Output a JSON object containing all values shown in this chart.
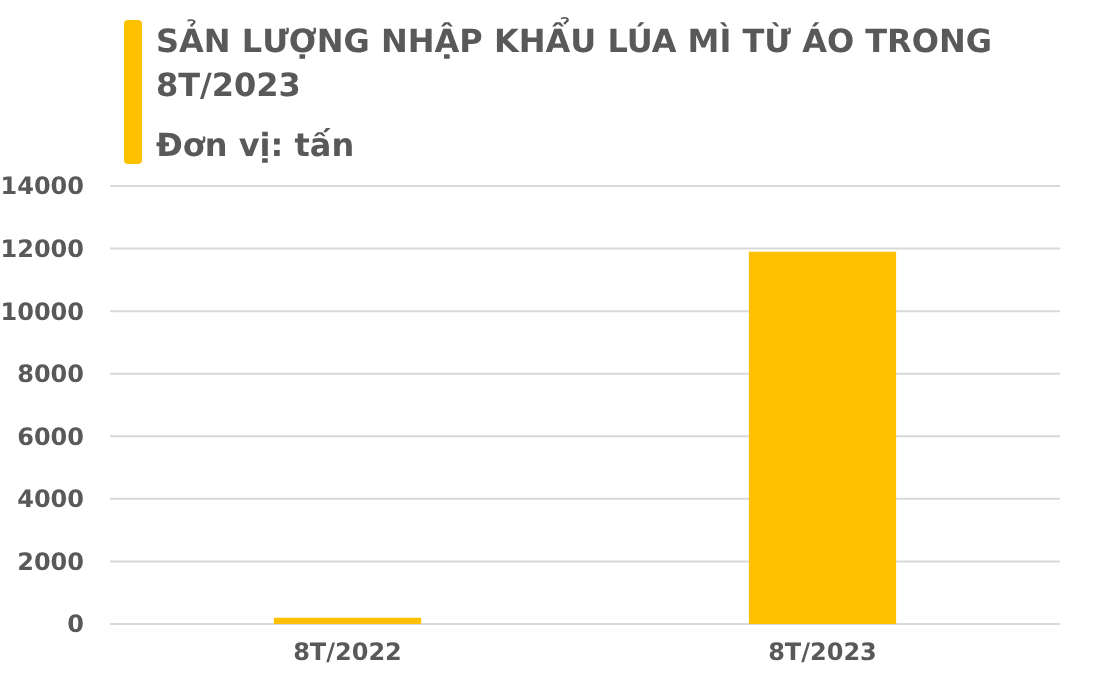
{
  "chart_data": {
    "type": "bar",
    "title": "SẢN LƯỢNG NHẬP KHẨU LÚA MÌ TỪ ÁO TRONG 8T/2023",
    "subtitle": "Đơn vị: tấn",
    "categories": [
      "8T/2022",
      "8T/2023"
    ],
    "values": [
      200,
      11900
    ],
    "color": "#ffc000",
    "ylim": [
      0,
      14000
    ],
    "yticks": [
      0,
      2000,
      4000,
      6000,
      8000,
      10000,
      12000,
      14000
    ],
    "grid": true
  }
}
